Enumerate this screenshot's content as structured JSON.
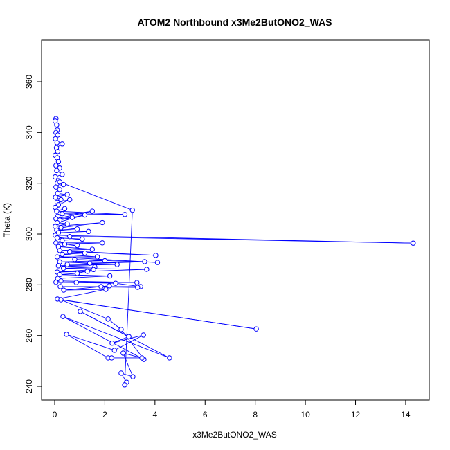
{
  "chart_data": {
    "type": "line",
    "title": "ATOM2 Northbound x3Me2ButONO2_WAS",
    "xlabel": "x3Me2ButONO2_WAS",
    "ylabel": "Theta (K)",
    "xlim": [
      -0.5,
      14.9
    ],
    "ylim": [
      235,
      375
    ],
    "xticks": [
      0,
      2,
      4,
      6,
      8,
      10,
      12,
      14
    ],
    "yticks": [
      240,
      260,
      280,
      300,
      320,
      340,
      360
    ],
    "grid": false,
    "color": "#0000ff",
    "marker": "open-circle",
    "points": [
      [
        0.05,
        345.5
      ],
      [
        0.02,
        344.5
      ],
      [
        0.08,
        343
      ],
      [
        0.1,
        341
      ],
      [
        0.05,
        340
      ],
      [
        0.12,
        339
      ],
      [
        0.03,
        337.5
      ],
      [
        0.09,
        336
      ],
      [
        0.3,
        335.5
      ],
      [
        0.07,
        334
      ],
      [
        0.12,
        332.5
      ],
      [
        0.02,
        331
      ],
      [
        0.1,
        330
      ],
      [
        0.15,
        328.5
      ],
      [
        0.05,
        327
      ],
      [
        0.2,
        326
      ],
      [
        0.08,
        325
      ],
      [
        0.3,
        323.5
      ],
      [
        0.02,
        322.5
      ],
      [
        0.15,
        321
      ],
      [
        0.1,
        320
      ],
      [
        0.35,
        319.5
      ],
      [
        0.05,
        318.5
      ],
      [
        0.2,
        317.5
      ],
      [
        0.12,
        316
      ],
      [
        0.5,
        315.5
      ],
      [
        0.03,
        314.5
      ],
      [
        0.25,
        313.5
      ],
      [
        0.1,
        312.5
      ],
      [
        0.6,
        313.5
      ],
      [
        0.15,
        311.5
      ],
      [
        0.02,
        310.5
      ],
      [
        0.4,
        310
      ],
      [
        0.08,
        309
      ],
      [
        2.8,
        307.7
      ],
      [
        0.3,
        308
      ],
      [
        0.12,
        307
      ],
      [
        1.5,
        309
      ],
      [
        0.05,
        306
      ],
      [
        0.7,
        306.5
      ],
      [
        0.2,
        305.5
      ],
      [
        1.2,
        307.5
      ],
      [
        0.1,
        304.5
      ],
      [
        0.5,
        304
      ],
      [
        0.02,
        303
      ],
      [
        1.9,
        304.5
      ],
      [
        0.25,
        302.5
      ],
      [
        0.9,
        302
      ],
      [
        0.08,
        301.5
      ],
      [
        1.35,
        301
      ],
      [
        0.15,
        300.5
      ],
      [
        0.02,
        299.5
      ],
      [
        14.3,
        296.4
      ],
      [
        0.6,
        299
      ],
      [
        0.1,
        298.5
      ],
      [
        1.1,
        298
      ],
      [
        0.3,
        297.5
      ],
      [
        0.05,
        296.5
      ],
      [
        1.9,
        296.5
      ],
      [
        0.4,
        296
      ],
      [
        0.9,
        295.5
      ],
      [
        0.15,
        295
      ],
      [
        1.5,
        294
      ],
      [
        0.2,
        293.5
      ],
      [
        4.03,
        291.6
      ],
      [
        0.6,
        293
      ],
      [
        1.2,
        292.5
      ],
      [
        0.3,
        292
      ],
      [
        1.7,
        291
      ],
      [
        0.1,
        291
      ],
      [
        4.1,
        288.8
      ],
      [
        0.8,
        290
      ],
      [
        2.0,
        289.5
      ],
      [
        0.2,
        289
      ],
      [
        1.4,
        288.5
      ],
      [
        3.59,
        289.1
      ],
      [
        0.5,
        288
      ],
      [
        2.49,
        288
      ],
      [
        0.15,
        287.5
      ],
      [
        1.6,
        287
      ],
      [
        0.35,
        286.5
      ],
      [
        3.67,
        286.1
      ],
      [
        1.3,
        285.3
      ],
      [
        0.1,
        285
      ],
      [
        1.55,
        286
      ],
      [
        0.9,
        284.5
      ],
      [
        0.2,
        284
      ],
      [
        2.2,
        283.5
      ],
      [
        0.12,
        282.5
      ],
      [
        0.25,
        281.5
      ],
      [
        3.28,
        280.9
      ],
      [
        0.86,
        280.9
      ],
      [
        0.05,
        281
      ],
      [
        2.43,
        280.6
      ],
      [
        3.43,
        279.3
      ],
      [
        0.22,
        279.3
      ],
      [
        3.31,
        279
      ],
      [
        1.85,
        279.3
      ],
      [
        2.18,
        279.6
      ],
      [
        0.36,
        277.9
      ],
      [
        2.04,
        278.2
      ],
      [
        0.11,
        274.4
      ],
      [
        8.04,
        262.6
      ],
      [
        0.25,
        274.1
      ],
      [
        2.13,
        266.5
      ],
      [
        2.65,
        262.4
      ],
      [
        3.56,
        250.6
      ],
      [
        0.33,
        267.5
      ],
      [
        4.58,
        251.2
      ],
      [
        1.02,
        269.5
      ],
      [
        2.96,
        259.6
      ],
      [
        2.29,
        257
      ],
      [
        3.54,
        260.2
      ],
      [
        2.38,
        254.2
      ],
      [
        0.47,
        260.5
      ],
      [
        2.13,
        251.2
      ],
      [
        2.27,
        251.2
      ],
      [
        3.48,
        251.2
      ],
      [
        2.73,
        253.1
      ],
      [
        3.12,
        243.8
      ],
      [
        2.65,
        245.2
      ],
      [
        2.87,
        241.6
      ],
      [
        2.79,
        240.6
      ],
      [
        3.1,
        309.4
      ],
      [
        0.2,
        320.5
      ]
    ]
  }
}
